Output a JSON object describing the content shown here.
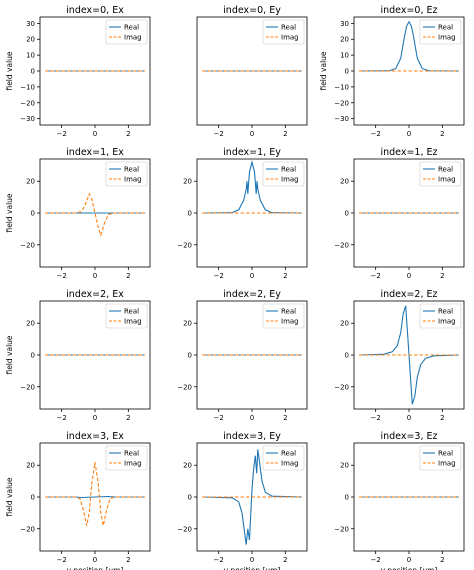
{
  "colors": {
    "real": "#1f77b4",
    "imag": "#ff7f0e"
  },
  "chart_data": [
    {
      "type": "line",
      "title": "index=0, Ex",
      "xlabel": "",
      "ylabel": "field value",
      "xlim": [
        -3.3,
        3.3
      ],
      "ylim": [
        -34,
        34
      ],
      "xticks": [
        "−2",
        "0",
        "2"
      ],
      "yticks": [
        "30",
        "20",
        "10",
        "0",
        "−10",
        "−20",
        "−30"
      ],
      "legend": "top-right",
      "series": [
        {
          "name": "Real",
          "x": [
            -3,
            3
          ],
          "y": [
            0,
            0
          ]
        },
        {
          "name": "Imag",
          "x": [
            -3,
            3
          ],
          "y": [
            0,
            0
          ]
        }
      ]
    },
    {
      "type": "line",
      "title": "index=0, Ey",
      "xlabel": "",
      "ylabel": "",
      "xlim": [
        -3.3,
        3.3
      ],
      "ylim": [
        -34,
        34
      ],
      "xticks": [
        "−2",
        "0",
        "2"
      ],
      "yticks": [],
      "legend": "top-right",
      "series": [
        {
          "name": "Real",
          "x": [
            -3,
            3
          ],
          "y": [
            0,
            0
          ]
        },
        {
          "name": "Imag",
          "x": [
            -3,
            3
          ],
          "y": [
            0,
            0
          ]
        }
      ]
    },
    {
      "type": "line",
      "title": "index=0, Ez",
      "xlabel": "",
      "ylabel": "field value",
      "xlim": [
        -3.3,
        3.3
      ],
      "ylim": [
        -34,
        34
      ],
      "xticks": [
        "−2",
        "0",
        "2"
      ],
      "yticks": [
        "30",
        "20",
        "10",
        "0",
        "−10",
        "−20",
        "−30"
      ],
      "legend": "top-right",
      "series": [
        {
          "name": "Real",
          "x": [
            -3,
            -1.2,
            -0.8,
            -0.5,
            -0.3,
            -0.15,
            0,
            0.15,
            0.3,
            0.5,
            0.8,
            1.2,
            3
          ],
          "y": [
            0,
            0.1,
            1.5,
            8,
            20,
            28,
            31,
            28,
            20,
            8,
            1.5,
            0.1,
            0
          ]
        },
        {
          "name": "Imag",
          "x": [
            -3,
            3
          ],
          "y": [
            0,
            0
          ]
        }
      ]
    },
    {
      "type": "line",
      "title": "index=1, Ex",
      "xlabel": "",
      "ylabel": "field value",
      "xlim": [
        -3.3,
        3.3
      ],
      "ylim": [
        -34,
        34
      ],
      "xticks": [
        "−2",
        "0",
        "2"
      ],
      "yticks": [
        "20",
        "0",
        "−20"
      ],
      "legend": "top-right",
      "series": [
        {
          "name": "Real",
          "x": [
            -3,
            3
          ],
          "y": [
            0,
            0
          ]
        },
        {
          "name": "Imag",
          "x": [
            -3,
            -1.1,
            -0.8,
            -0.55,
            -0.35,
            -0.2,
            0,
            0.2,
            0.35,
            0.55,
            0.8,
            1.1,
            3
          ],
          "y": [
            0,
            0,
            1,
            6,
            12,
            9,
            0,
            -9,
            -14,
            -7,
            -1,
            0,
            0
          ]
        }
      ]
    },
    {
      "type": "line",
      "title": "index=1, Ey",
      "xlabel": "",
      "ylabel": "",
      "xlim": [
        -3.3,
        3.3
      ],
      "ylim": [
        -34,
        34
      ],
      "xticks": [
        "−2",
        "0",
        "2"
      ],
      "yticks": [
        "20",
        "0",
        "−20"
      ],
      "legend": "top-right",
      "series": [
        {
          "name": "Real",
          "x": [
            -3,
            -1.2,
            -0.8,
            -0.5,
            -0.35,
            -0.3,
            -0.25,
            -0.15,
            0,
            0.15,
            0.25,
            0.3,
            0.35,
            0.5,
            0.8,
            1.2,
            3
          ],
          "y": [
            0,
            0.2,
            2,
            8,
            15,
            20,
            12,
            26,
            32,
            26,
            12,
            20,
            15,
            8,
            2,
            0.2,
            0
          ]
        },
        {
          "name": "Imag",
          "x": [
            -3,
            3
          ],
          "y": [
            0,
            0
          ]
        }
      ]
    },
    {
      "type": "line",
      "title": "index=1, Ez",
      "xlabel": "",
      "ylabel": "",
      "xlim": [
        -3.3,
        3.3
      ],
      "ylim": [
        -34,
        34
      ],
      "xticks": [
        "−2",
        "0",
        "2"
      ],
      "yticks": [
        "20",
        "0",
        "−20"
      ],
      "legend": "top-right",
      "series": [
        {
          "name": "Real",
          "x": [
            -3,
            3
          ],
          "y": [
            0,
            0
          ]
        },
        {
          "name": "Imag",
          "x": [
            -3,
            3
          ],
          "y": [
            0,
            0
          ]
        }
      ]
    },
    {
      "type": "line",
      "title": "index=2, Ex",
      "xlabel": "",
      "ylabel": "field value",
      "xlim": [
        -3.3,
        3.3
      ],
      "ylim": [
        -34,
        34
      ],
      "xticks": [
        "−2",
        "0",
        "2"
      ],
      "yticks": [
        "20",
        "0",
        "−20"
      ],
      "legend": "top-right",
      "series": [
        {
          "name": "Real",
          "x": [
            -3,
            3
          ],
          "y": [
            0,
            0
          ]
        },
        {
          "name": "Imag",
          "x": [
            -3,
            3
          ],
          "y": [
            0,
            0
          ]
        }
      ]
    },
    {
      "type": "line",
      "title": "index=2, Ey",
      "xlabel": "",
      "ylabel": "",
      "xlim": [
        -3.3,
        3.3
      ],
      "ylim": [
        -34,
        34
      ],
      "xticks": [
        "−2",
        "0",
        "2"
      ],
      "yticks": [
        "20",
        "0",
        "−20"
      ],
      "legend": "top-right",
      "series": [
        {
          "name": "Real",
          "x": [
            -3,
            3
          ],
          "y": [
            0,
            0
          ]
        },
        {
          "name": "Imag",
          "x": [
            -3,
            3
          ],
          "y": [
            0,
            0
          ]
        }
      ]
    },
    {
      "type": "line",
      "title": "index=2, Ez",
      "xlabel": "",
      "ylabel": "",
      "xlim": [
        -3.3,
        3.3
      ],
      "ylim": [
        -34,
        34
      ],
      "xticks": [
        "−2",
        "0",
        "2"
      ],
      "yticks": [
        "20",
        "0",
        "−20"
      ],
      "legend": "top-right",
      "series": [
        {
          "name": "Real",
          "x": [
            -3,
            -1.5,
            -1,
            -0.7,
            -0.5,
            -0.35,
            -0.2,
            0,
            0.2,
            0.35,
            0.5,
            0.7,
            1,
            1.5,
            3
          ],
          "y": [
            0,
            0.5,
            2,
            6,
            14,
            26,
            31,
            0,
            -31,
            -26,
            -14,
            -6,
            -2,
            -0.5,
            0
          ]
        },
        {
          "name": "Imag",
          "x": [
            -3,
            3
          ],
          "y": [
            0,
            0
          ]
        }
      ]
    },
    {
      "type": "line",
      "title": "index=3, Ex",
      "xlabel": "y position [um]",
      "ylabel": "field value",
      "xlim": [
        -3.3,
        3.3
      ],
      "ylim": [
        -34,
        34
      ],
      "xticks": [
        "−2",
        "0",
        "2"
      ],
      "yticks": [
        "20",
        "0",
        "−20"
      ],
      "legend": "top-right",
      "series": [
        {
          "name": "Real",
          "x": [
            -3,
            -1.2,
            -0.8,
            0,
            0.8,
            1.2,
            3
          ],
          "y": [
            0,
            0,
            -0.3,
            0,
            0.3,
            0,
            0
          ]
        },
        {
          "name": "Imag",
          "x": [
            -3,
            -1.2,
            -0.9,
            -0.7,
            -0.5,
            -0.35,
            -0.2,
            0,
            0.2,
            0.35,
            0.5,
            0.7,
            0.9,
            1.2,
            3
          ],
          "y": [
            0,
            0,
            -1,
            -8,
            -18,
            -10,
            8,
            22,
            8,
            -10,
            -18,
            -8,
            -1,
            0,
            0
          ]
        }
      ]
    },
    {
      "type": "line",
      "title": "index=3, Ey",
      "xlabel": "y position [um]",
      "ylabel": "",
      "xlim": [
        -3.3,
        3.3
      ],
      "ylim": [
        -34,
        34
      ],
      "xticks": [
        "−2",
        "0",
        "2"
      ],
      "yticks": [
        "20",
        "0",
        "−20"
      ],
      "legend": "top-right",
      "series": [
        {
          "name": "Real",
          "x": [
            -3,
            -1.2,
            -0.8,
            -0.6,
            -0.45,
            -0.35,
            -0.25,
            -0.15,
            0,
            0.1,
            0.2,
            0.28,
            0.35,
            0.45,
            0.6,
            0.8,
            1.2,
            3
          ],
          "y": [
            0,
            -0.5,
            -3,
            -10,
            -22,
            -30,
            -20,
            -27,
            5,
            18,
            26,
            15,
            30,
            22,
            10,
            3,
            0.5,
            0
          ]
        },
        {
          "name": "Imag",
          "x": [
            -3,
            3
          ],
          "y": [
            0,
            0
          ]
        }
      ]
    },
    {
      "type": "line",
      "title": "index=3, Ez",
      "xlabel": "y position [um]",
      "ylabel": "",
      "xlim": [
        -3.3,
        3.3
      ],
      "ylim": [
        -34,
        34
      ],
      "xticks": [
        "−2",
        "0",
        "2"
      ],
      "yticks": [
        "20",
        "0",
        "−20"
      ],
      "legend": "top-right",
      "series": [
        {
          "name": "Real",
          "x": [
            -3,
            3
          ],
          "y": [
            0,
            0
          ]
        },
        {
          "name": "Imag",
          "x": [
            -3,
            3
          ],
          "y": [
            0,
            0
          ]
        }
      ]
    }
  ]
}
